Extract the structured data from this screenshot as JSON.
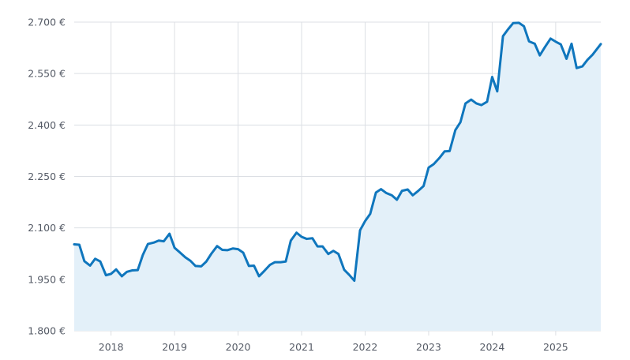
{
  "chart_data": {
    "type": "area",
    "currency_suffix": " €",
    "x_tick_labels": [
      "2018",
      "2019",
      "2020",
      "2021",
      "2022",
      "2023",
      "2024",
      "2025"
    ],
    "y_ticks": [
      1800,
      1950,
      2100,
      2250,
      2400,
      2550,
      2700
    ],
    "y_tick_labels": [
      "1.800 €",
      "1.950 €",
      "2.100 €",
      "2.250 €",
      "2.400 €",
      "2.550 €",
      "2.700 €"
    ],
    "ylim": [
      1800,
      2700
    ],
    "xlim": [
      2017.42,
      2025.71
    ],
    "grid": true,
    "colors": {
      "line": "#0f76bd",
      "fill": "#e3f0f9",
      "grid": "#dcdfe4",
      "text": "#555b66"
    },
    "series": [
      {
        "x": [
          2017.42,
          2017.5,
          2017.58,
          2017.67,
          2017.75,
          2017.83,
          2017.92,
          2018.0,
          2018.08,
          2018.17,
          2018.25,
          2018.33,
          2018.42,
          2018.5,
          2018.58,
          2018.67,
          2018.75,
          2018.83,
          2018.92,
          2019.0,
          2019.08,
          2019.17,
          2019.25,
          2019.33,
          2019.42,
          2019.5,
          2019.58,
          2019.67,
          2019.75,
          2019.83,
          2019.92,
          2020.0,
          2020.08,
          2020.17,
          2020.25,
          2020.33,
          2020.42,
          2020.5,
          2020.58,
          2020.67,
          2020.75,
          2020.83,
          2020.92,
          2021.0,
          2021.08,
          2021.17,
          2021.25,
          2021.33,
          2021.42,
          2021.5,
          2021.58,
          2021.67,
          2021.75,
          2021.83,
          2021.92,
          2022.0,
          2022.08,
          2022.17,
          2022.25,
          2022.33,
          2022.42,
          2022.5,
          2022.58,
          2022.67,
          2022.75,
          2022.83,
          2022.92,
          2023.0,
          2023.08,
          2023.17,
          2023.25,
          2023.33,
          2023.42,
          2023.5,
          2023.58,
          2023.67,
          2023.75,
          2023.83,
          2023.92,
          2024.0,
          2024.08,
          2024.17,
          2024.25,
          2024.33,
          2024.42,
          2024.5,
          2024.58,
          2024.67,
          2024.75,
          2024.83,
          2024.92,
          2025.0,
          2025.08,
          2025.17,
          2025.25,
          2025.33,
          2025.42,
          2025.5,
          2025.58,
          2025.71
        ],
        "values": [
          2052,
          2051,
          2003,
          1990,
          2010,
          2002,
          1962,
          1966,
          1979,
          1959,
          1972,
          1976,
          1977,
          2021,
          2053,
          2057,
          2063,
          2061,
          2083,
          2042,
          2029,
          2014,
          2004,
          1989,
          1988,
          2002,
          2025,
          2047,
          2036,
          2035,
          2040,
          2038,
          2028,
          1989,
          1990,
          1959,
          1976,
          1992,
          2000,
          2000,
          2002,
          2063,
          2086,
          2074,
          2068,
          2070,
          2046,
          2046,
          2024,
          2033,
          2024,
          1978,
          1963,
          1946,
          2093,
          2120,
          2141,
          2203,
          2213,
          2202,
          2195,
          2182,
          2208,
          2212,
          2195,
          2207,
          2222,
          2276,
          2286,
          2304,
          2323,
          2324,
          2385,
          2408,
          2463,
          2474,
          2463,
          2458,
          2468,
          2540,
          2498,
          2659,
          2679,
          2697,
          2698,
          2688,
          2644,
          2637,
          2603,
          2627,
          2652,
          2643,
          2635,
          2593,
          2637,
          2566,
          2571,
          2590,
          2605,
          2636
        ]
      }
    ]
  }
}
